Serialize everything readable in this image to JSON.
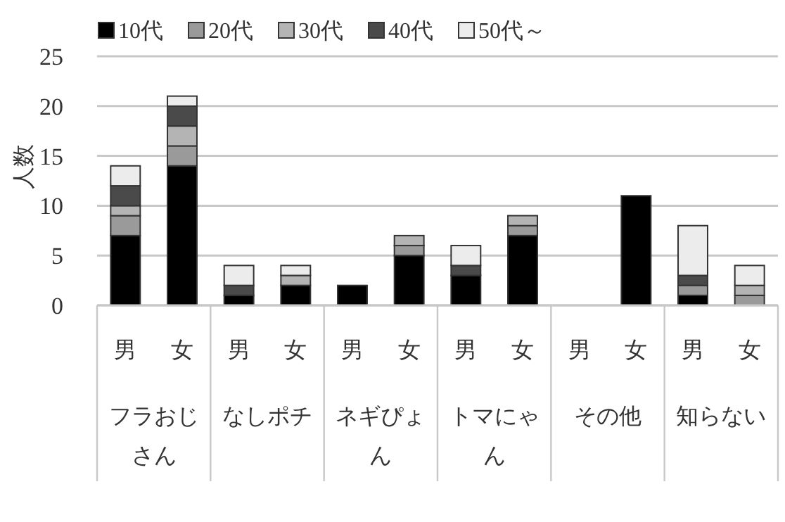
{
  "chart_data": {
    "type": "bar",
    "stacked": true,
    "ylabel": "人数",
    "categories": [
      "男",
      "女",
      "男",
      "女",
      "男",
      "女",
      "男",
      "女",
      "男",
      "女",
      "男",
      "女"
    ],
    "annotations": [
      "フラおじさん",
      "なしポチ",
      "ネギぴょん",
      "トマにゃん",
      "その他",
      "知らない"
    ],
    "series": [
      {
        "name": "10代",
        "color": "#000000",
        "values": [
          7,
          14,
          1,
          2,
          2,
          5,
          3,
          7,
          0,
          11,
          1,
          0
        ]
      },
      {
        "name": "20代",
        "color": "#9a9a9a",
        "values": [
          2,
          2,
          0,
          0,
          0,
          1,
          0,
          1,
          0,
          0,
          1,
          1
        ]
      },
      {
        "name": "30代",
        "color": "#b4b4b4",
        "values": [
          1,
          2,
          0,
          1,
          0,
          1,
          0,
          1,
          0,
          0,
          0,
          1
        ]
      },
      {
        "name": "40代",
        "color": "#4a4a4a",
        "values": [
          2,
          2,
          1,
          0,
          0,
          0,
          1,
          0,
          0,
          0,
          1,
          0
        ]
      },
      {
        "name": "50代～",
        "color": "#ececec",
        "values": [
          2,
          1,
          2,
          1,
          0,
          0,
          2,
          0,
          0,
          0,
          5,
          2
        ]
      }
    ],
    "ylim": [
      0,
      25
    ],
    "yticks": [
      0,
      5,
      10,
      15,
      20,
      25
    ],
    "grid": "y",
    "legend": "top"
  }
}
